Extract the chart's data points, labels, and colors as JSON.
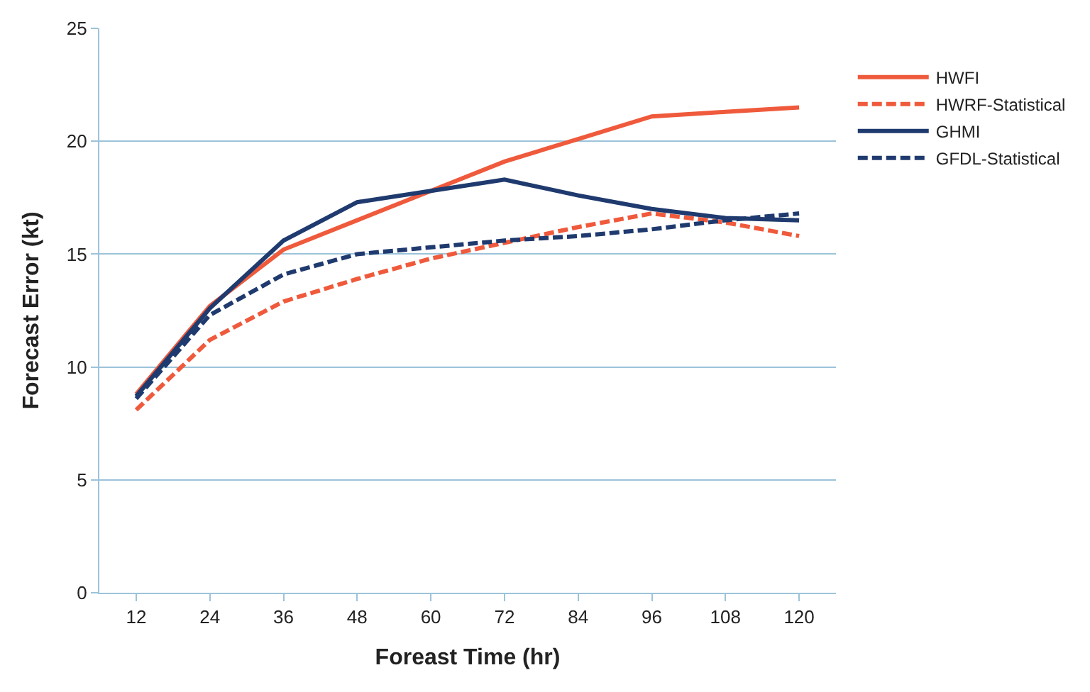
{
  "chart_data": {
    "type": "line",
    "xlabel": "Foreast Time (hr)",
    "ylabel": "Forecast Error (kt)",
    "categories": [
      "12",
      "24",
      "36",
      "48",
      "60",
      "72",
      "84",
      "96",
      "108",
      "120"
    ],
    "ylim": [
      0,
      25
    ],
    "yticks": [
      0,
      5,
      10,
      15,
      20,
      25
    ],
    "grid": "y",
    "legend": "right",
    "marker": "none",
    "series": [
      {
        "name": "HWFI",
        "color": "#ef5a3c",
        "line_style": "solid",
        "values": [
          8.8,
          12.7,
          15.2,
          16.5,
          17.8,
          19.1,
          20.1,
          21.1,
          21.3,
          21.5
        ]
      },
      {
        "name": "HWRF-Statistical",
        "color": "#ef5a3c",
        "line_style": "dashed",
        "values": [
          8.1,
          11.2,
          12.9,
          13.9,
          14.8,
          15.5,
          16.2,
          16.8,
          16.4,
          15.8
        ]
      },
      {
        "name": "GHMI",
        "color": "#1f3a6e",
        "line_style": "solid",
        "values": [
          8.7,
          12.6,
          15.6,
          17.3,
          17.8,
          18.3,
          17.6,
          17.0,
          16.6,
          16.5
        ]
      },
      {
        "name": "GFDL-Statistical",
        "color": "#1f3a6e",
        "line_style": "dashed",
        "values": [
          8.6,
          12.3,
          14.1,
          15.0,
          15.3,
          15.6,
          15.8,
          16.1,
          16.5,
          16.8
        ]
      }
    ]
  }
}
